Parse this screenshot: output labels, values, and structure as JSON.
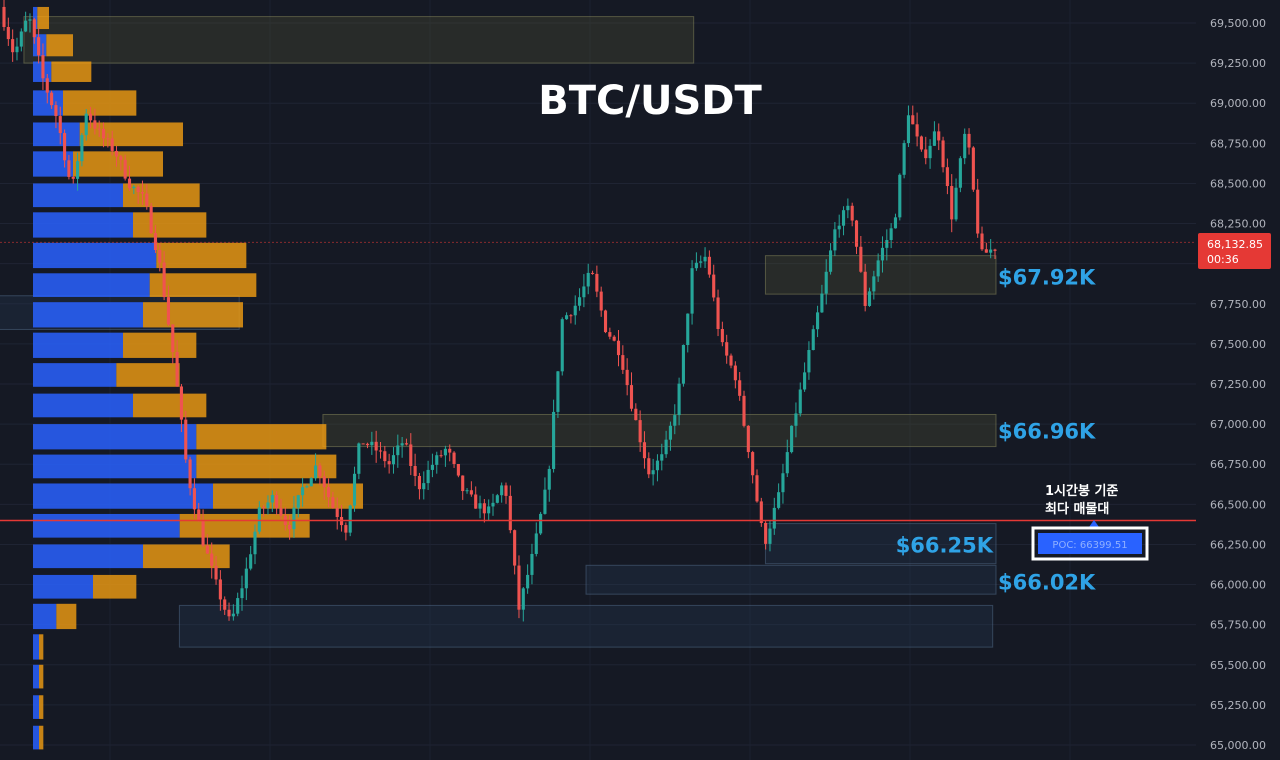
{
  "chart_data": {
    "type": "candlestick",
    "title": "BTC/USDT",
    "colors": {
      "up": "#26a69a",
      "down": "#ef5350",
      "background": "#151924",
      "poc_line": "#e53935",
      "vp_up": "#2962ff",
      "vp_down": "#f29d12",
      "zone_label": "#2fa3e6",
      "current_price_bg": "#e53935"
    },
    "y_axis": {
      "range": [
        64950,
        69620
      ],
      "ticks": [
        "69,500.00",
        "69,250.00",
        "69,000.00",
        "68,750.00",
        "68,500.00",
        "68,250.00",
        "68,000.00",
        "67,750.00",
        "67,500.00",
        "67,250.00",
        "67,000.00",
        "66,750.00",
        "66,500.00",
        "66,250.00",
        "66,000.00",
        "65,750.00",
        "65,500.00",
        "65,250.00",
        "65,000.00"
      ]
    },
    "current_price": {
      "price": "68,132.85",
      "countdown": "00:36"
    },
    "poc": {
      "price": 66399.51,
      "label": "POC: 66399.51",
      "note_line1": "1시간봉 기준",
      "note_line2": "최다 매물대"
    },
    "zone_labels": [
      {
        "text": "$67.92K",
        "price": 67920
      },
      {
        "text": "$66.96K",
        "price": 66960
      },
      {
        "text": "$66.25K",
        "price": 66250
      },
      {
        "text": "$66.02K",
        "price": 66020
      }
    ],
    "zones": [
      {
        "top": 69540,
        "bottom": 69250,
        "x_start": 0.02,
        "x_end": 0.58,
        "tint": "olive"
      },
      {
        "top": 68050,
        "bottom": 67810,
        "x_start": 0.64,
        "x_end": 1.0,
        "tint": "olive"
      },
      {
        "top": 67800,
        "bottom": 67590,
        "x_start": -0.05,
        "x_end": 0.2,
        "tint": "blue"
      },
      {
        "top": 67060,
        "bottom": 66860,
        "x_start": 0.27,
        "x_end": 1.0,
        "tint": "olive"
      },
      {
        "top": 66380,
        "bottom": 66130,
        "x_start": 0.64,
        "x_end": 1.0,
        "tint": "blue"
      },
      {
        "top": 66120,
        "bottom": 65940,
        "x_start": 0.49,
        "x_end": 1.0,
        "tint": "blue"
      },
      {
        "top": 65870,
        "bottom": 65610,
        "x_start": 0.15,
        "x_end": 0.83,
        "tint": "blue"
      }
    ],
    "volume_profile": [
      {
        "top": 69600,
        "bottom": 69450,
        "up": 0.013,
        "down": 0.035
      },
      {
        "top": 69430,
        "bottom": 69280,
        "up": 0.04,
        "down": 0.08
      },
      {
        "top": 69260,
        "bottom": 69120,
        "up": 0.055,
        "down": 0.12
      },
      {
        "top": 69080,
        "bottom": 68910,
        "up": 0.09,
        "down": 0.22
      },
      {
        "top": 68880,
        "bottom": 68720,
        "up": 0.14,
        "down": 0.31
      },
      {
        "top": 68700,
        "bottom": 68530,
        "up": 0.12,
        "down": 0.27
      },
      {
        "top": 68500,
        "bottom": 68340,
        "up": 0.27,
        "down": 0.23
      },
      {
        "top": 68320,
        "bottom": 68150,
        "up": 0.3,
        "down": 0.22
      },
      {
        "top": 68130,
        "bottom": 67960,
        "up": 0.37,
        "down": 0.27
      },
      {
        "top": 67940,
        "bottom": 67780,
        "up": 0.35,
        "down": 0.32
      },
      {
        "top": 67760,
        "bottom": 67590,
        "up": 0.33,
        "down": 0.3
      },
      {
        "top": 67570,
        "bottom": 67400,
        "up": 0.27,
        "down": 0.22
      },
      {
        "top": 67380,
        "bottom": 67220,
        "up": 0.25,
        "down": 0.19
      },
      {
        "top": 67190,
        "bottom": 67030,
        "up": 0.3,
        "down": 0.22
      },
      {
        "top": 67000,
        "bottom": 66830,
        "up": 0.49,
        "down": 0.39
      },
      {
        "top": 66810,
        "bottom": 66650,
        "up": 0.49,
        "down": 0.42
      },
      {
        "top": 66630,
        "bottom": 66460,
        "up": 0.54,
        "down": 0.45
      },
      {
        "top": 66440,
        "bottom": 66280,
        "up": 0.44,
        "down": 0.39
      },
      {
        "top": 66250,
        "bottom": 66090,
        "up": 0.33,
        "down": 0.26
      },
      {
        "top": 66060,
        "bottom": 65900,
        "up": 0.18,
        "down": 0.13
      },
      {
        "top": 65880,
        "bottom": 65710,
        "up": 0.07,
        "down": 0.06
      },
      {
        "top": 65690,
        "bottom": 65520,
        "up": 0.018,
        "down": 0.013
      },
      {
        "top": 65500,
        "bottom": 65340,
        "up": 0.018,
        "down": 0.013
      },
      {
        "top": 65310,
        "bottom": 65150,
        "up": 0.018,
        "down": 0.013
      },
      {
        "top": 65120,
        "bottom": 64960,
        "up": 0.018,
        "down": 0.013
      }
    ],
    "path": [
      69600,
      69300,
      69550,
      69150,
      68900,
      68450,
      68950,
      68800,
      68700,
      68500,
      68400,
      68050,
      67450,
      66700,
      66300,
      66000,
      65750,
      66050,
      66450,
      66550,
      66350,
      66600,
      66750,
      66500,
      66350,
      66900,
      66850,
      66750,
      66900,
      66600,
      66750,
      66850,
      66600,
      66500,
      66450,
      66650,
      65850,
      66200,
      66650,
      67650,
      67750,
      67950,
      67600,
      67450,
      67050,
      66700,
      66800,
      67150,
      67950,
      68050,
      67500,
      67300,
      66800,
      66250,
      66550,
      67000,
      67400,
      67800,
      68250,
      68350,
      67750,
      68050,
      68250,
      68950,
      68650,
      68850,
      68300,
      68850,
      68050,
      68100
    ]
  }
}
